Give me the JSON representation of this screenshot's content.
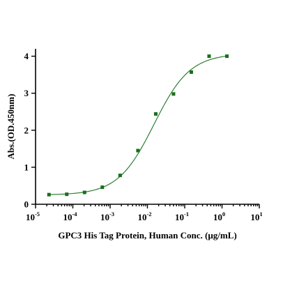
{
  "chart_data": {
    "type": "scatter",
    "xlabel": "GPC3 His Tag Protein, Human Conc. (μg/mL)",
    "ylabel": "Abs.(OD.450nm)",
    "x_scale": "log",
    "xlim": [
      1e-05,
      10
    ],
    "ylim": [
      0,
      4.2
    ],
    "x_ticks": [
      {
        "base": "10",
        "exp": "-5",
        "value": 1e-05
      },
      {
        "base": "10",
        "exp": "-4",
        "value": 0.0001
      },
      {
        "base": "10",
        "exp": "-3",
        "value": 0.001
      },
      {
        "base": "10",
        "exp": "-2",
        "value": 0.01
      },
      {
        "base": "10",
        "exp": "-1",
        "value": 0.1
      },
      {
        "base": "10",
        "exp": "0",
        "value": 1
      },
      {
        "base": "10",
        "exp": "1",
        "value": 10
      }
    ],
    "y_ticks": [
      "0",
      "1",
      "2",
      "3",
      "4"
    ],
    "grid": false,
    "legend": "none",
    "marker_color": "#1b6e1b",
    "curve_color": "#2e7d32",
    "points": {
      "x": [
        2.29e-05,
        6.86e-05,
        0.000206,
        0.000617,
        0.00185,
        0.00556,
        0.0167,
        0.05,
        0.15,
        0.45,
        1.35
      ],
      "y": [
        0.26,
        0.27,
        0.32,
        0.46,
        0.78,
        1.45,
        2.44,
        2.98,
        3.57,
        4.0,
        4.0
      ]
    },
    "fit": {
      "model": "4PL",
      "bottom": 0.25,
      "top": 4.07,
      "ec50": 0.015,
      "hill": 0.9
    }
  }
}
